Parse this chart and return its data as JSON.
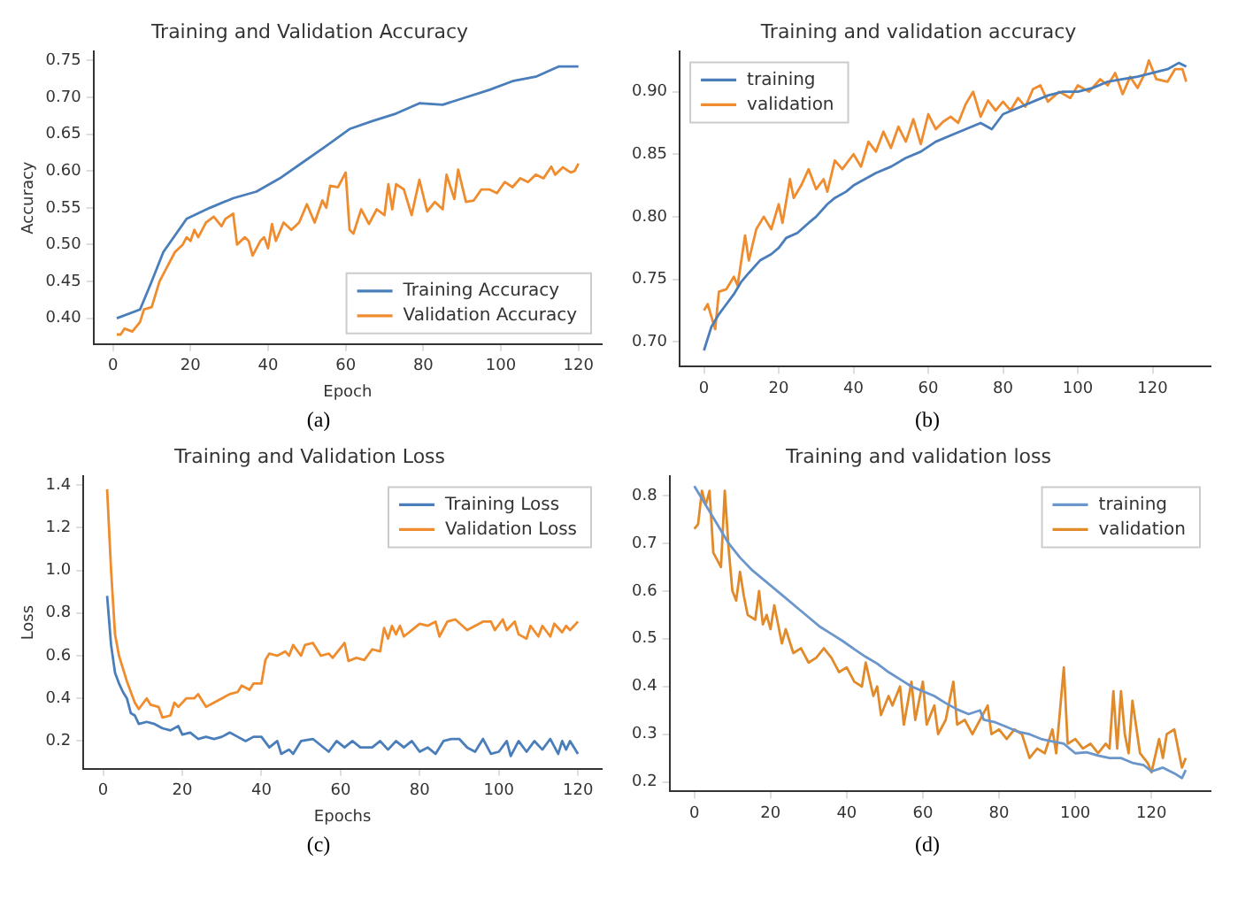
{
  "chart_data": [
    {
      "type": "line",
      "title": "Training and Validation Accuracy",
      "xlabel": "Epoch",
      "ylabel": "Accuracy",
      "annotations": [
        "(a)"
      ],
      "xlim": [
        -5,
        126
      ],
      "xticks": [
        0,
        20,
        40,
        60,
        80,
        100,
        120
      ],
      "ylim": [
        0.365,
        0.762
      ],
      "yticks": [
        {
          "value": 0.4,
          "label": "0.40"
        },
        {
          "value": 0.45,
          "label": "0.45"
        },
        {
          "value": 0.5,
          "label": "0.50"
        },
        {
          "value": 0.55,
          "label": "0.55"
        },
        {
          "value": 0.6,
          "label": "0.60"
        },
        {
          "value": 0.65,
          "label": "0.65"
        },
        {
          "value": 0.7,
          "label": "0.70"
        },
        {
          "value": 0.75,
          "label": "0.75"
        }
      ],
      "legend": "bottom right",
      "grid": false,
      "marker": "none",
      "line_style": "solid",
      "series": [
        {
          "name": "Training Accuracy",
          "color": "#4a7ebb",
          "x": [
            1,
            7,
            10,
            13,
            19,
            25,
            31,
            37,
            43,
            49,
            55,
            61,
            67,
            73,
            79,
            85,
            91,
            97,
            103,
            109,
            115,
            120
          ],
          "values": [
            0.4,
            0.412,
            0.45,
            0.49,
            0.535,
            0.55,
            0.563,
            0.572,
            0.59,
            0.612,
            0.634,
            0.657,
            0.668,
            0.678,
            0.692,
            0.69,
            0.7,
            0.71,
            0.722,
            0.728,
            0.742,
            0.742
          ]
        },
        {
          "name": "Validation Accuracy",
          "color": "#ef8c2e",
          "x": [
            1,
            2,
            3,
            5,
            7,
            8,
            10,
            12,
            14,
            16,
            18,
            19,
            20,
            21,
            22,
            24,
            26,
            28,
            29,
            31,
            32,
            34,
            35,
            36,
            38,
            39,
            40,
            41,
            42,
            44,
            46,
            48,
            50,
            52,
            54,
            55,
            56,
            58,
            60,
            61,
            62,
            64,
            66,
            68,
            70,
            71,
            72,
            73,
            75,
            77,
            79,
            81,
            83,
            85,
            86,
            88,
            89,
            91,
            93,
            95,
            97,
            99,
            101,
            103,
            105,
            107,
            109,
            111,
            113,
            114,
            116,
            118,
            119,
            120
          ],
          "values": [
            0.378,
            0.378,
            0.386,
            0.382,
            0.395,
            0.412,
            0.415,
            0.45,
            0.47,
            0.49,
            0.5,
            0.51,
            0.505,
            0.52,
            0.51,
            0.53,
            0.538,
            0.525,
            0.535,
            0.542,
            0.5,
            0.51,
            0.505,
            0.485,
            0.505,
            0.51,
            0.495,
            0.528,
            0.505,
            0.53,
            0.52,
            0.53,
            0.555,
            0.53,
            0.56,
            0.55,
            0.58,
            0.578,
            0.598,
            0.52,
            0.515,
            0.548,
            0.528,
            0.548,
            0.54,
            0.582,
            0.548,
            0.582,
            0.575,
            0.54,
            0.588,
            0.545,
            0.558,
            0.548,
            0.595,
            0.562,
            0.602,
            0.558,
            0.56,
            0.575,
            0.575,
            0.57,
            0.585,
            0.578,
            0.59,
            0.585,
            0.595,
            0.59,
            0.606,
            0.595,
            0.605,
            0.598,
            0.6,
            0.61
          ]
        }
      ]
    },
    {
      "type": "line",
      "title": "Training and validation accuracy",
      "annotations": [
        "(b)"
      ],
      "xlim": [
        -6.5,
        135.5
      ],
      "xticks": [
        0,
        20,
        40,
        60,
        80,
        100,
        120
      ],
      "ylim": [
        0.68,
        0.932
      ],
      "yticks": [
        {
          "value": 0.7,
          "label": "0.70"
        },
        0.75,
        {
          "value": 0.8,
          "label": "0.80"
        },
        0.85,
        {
          "value": 0.9,
          "label": "0.90"
        }
      ],
      "legend": "top left",
      "grid": false,
      "marker": "none",
      "line_style": "solid",
      "series": [
        {
          "name": "training",
          "color": "#4a7ebb",
          "x": [
            0,
            2,
            4,
            6,
            8,
            10,
            12,
            15,
            18,
            20,
            22,
            25,
            28,
            30,
            33,
            35,
            38,
            40,
            43,
            46,
            50,
            54,
            58,
            62,
            66,
            70,
            74,
            77,
            80,
            84,
            88,
            92,
            96,
            100,
            104,
            108,
            112,
            116,
            120,
            124,
            127,
            129
          ],
          "values": [
            0.693,
            0.712,
            0.722,
            0.73,
            0.738,
            0.748,
            0.755,
            0.765,
            0.77,
            0.775,
            0.783,
            0.787,
            0.795,
            0.8,
            0.81,
            0.815,
            0.82,
            0.825,
            0.83,
            0.835,
            0.84,
            0.847,
            0.852,
            0.86,
            0.865,
            0.87,
            0.875,
            0.87,
            0.882,
            0.887,
            0.892,
            0.897,
            0.9,
            0.9,
            0.903,
            0.908,
            0.91,
            0.912,
            0.915,
            0.918,
            0.923,
            0.92
          ]
        },
        {
          "name": "validation",
          "color": "#ef8c2e",
          "x": [
            0,
            1,
            2,
            3,
            4,
            6,
            8,
            9,
            11,
            12,
            14,
            16,
            18,
            20,
            21,
            23,
            24,
            26,
            28,
            30,
            32,
            33,
            35,
            37,
            40,
            42,
            44,
            46,
            48,
            50,
            52,
            54,
            56,
            58,
            60,
            62,
            64,
            66,
            68,
            70,
            72,
            74,
            76,
            78,
            80,
            82,
            84,
            86,
            88,
            90,
            92,
            95,
            98,
            100,
            103,
            106,
            108,
            110,
            112,
            114,
            116,
            118,
            119,
            121,
            124,
            126,
            128,
            129
          ],
          "values": [
            0.725,
            0.73,
            0.72,
            0.71,
            0.74,
            0.742,
            0.752,
            0.745,
            0.785,
            0.765,
            0.79,
            0.8,
            0.79,
            0.81,
            0.795,
            0.83,
            0.815,
            0.825,
            0.838,
            0.822,
            0.83,
            0.82,
            0.845,
            0.838,
            0.85,
            0.84,
            0.86,
            0.852,
            0.868,
            0.855,
            0.872,
            0.86,
            0.878,
            0.858,
            0.882,
            0.87,
            0.876,
            0.88,
            0.875,
            0.89,
            0.9,
            0.88,
            0.893,
            0.885,
            0.892,
            0.885,
            0.895,
            0.888,
            0.902,
            0.905,
            0.892,
            0.9,
            0.895,
            0.905,
            0.9,
            0.91,
            0.905,
            0.915,
            0.898,
            0.912,
            0.903,
            0.915,
            0.925,
            0.91,
            0.908,
            0.918,
            0.918,
            0.908
          ]
        }
      ]
    },
    {
      "type": "line",
      "title": "Training and Validation Loss",
      "xlabel": "Epochs",
      "ylabel": "Loss",
      "annotations": [
        "(c)"
      ],
      "xlim": [
        -5,
        126
      ],
      "xticks": [
        0,
        20,
        40,
        60,
        80,
        100,
        120
      ],
      "ylim": [
        0.07,
        1.44
      ],
      "yticks": [
        0.2,
        0.4,
        0.6,
        0.8,
        {
          "value": 1,
          "label": "1.0"
        },
        1.2,
        1.4
      ],
      "legend": "top right",
      "grid": false,
      "marker": "none",
      "line_style": "solid",
      "series": [
        {
          "name": "Training Loss",
          "color": "#4a7ebb",
          "x": [
            1,
            2,
            3,
            4,
            5,
            6,
            7,
            8,
            9,
            11,
            13,
            15,
            17,
            19,
            20,
            22,
            24,
            26,
            28,
            30,
            32,
            34,
            36,
            38,
            40,
            42,
            44,
            45,
            47,
            48,
            50,
            53,
            55,
            57,
            59,
            61,
            63,
            65,
            68,
            70,
            72,
            74,
            76,
            78,
            80,
            82,
            84,
            86,
            88,
            90,
            92,
            94,
            96,
            98,
            100,
            102,
            103,
            105,
            107,
            109,
            111,
            113,
            115,
            116,
            117,
            118,
            120
          ],
          "values": [
            0.88,
            0.65,
            0.52,
            0.47,
            0.43,
            0.4,
            0.33,
            0.32,
            0.28,
            0.29,
            0.28,
            0.26,
            0.25,
            0.27,
            0.23,
            0.24,
            0.21,
            0.22,
            0.21,
            0.22,
            0.24,
            0.22,
            0.2,
            0.22,
            0.22,
            0.17,
            0.2,
            0.14,
            0.16,
            0.14,
            0.2,
            0.21,
            0.18,
            0.15,
            0.2,
            0.17,
            0.2,
            0.17,
            0.17,
            0.2,
            0.16,
            0.2,
            0.17,
            0.2,
            0.15,
            0.17,
            0.14,
            0.2,
            0.21,
            0.21,
            0.17,
            0.15,
            0.21,
            0.14,
            0.15,
            0.2,
            0.13,
            0.2,
            0.15,
            0.2,
            0.16,
            0.21,
            0.14,
            0.2,
            0.16,
            0.2,
            0.14
          ]
        },
        {
          "name": "Validation Loss",
          "color": "#ef8c2e",
          "x": [
            1,
            2,
            3,
            4,
            6,
            8,
            9,
            11,
            12,
            14,
            15,
            17,
            18,
            19,
            21,
            23,
            24,
            26,
            28,
            30,
            32,
            34,
            35,
            37,
            38,
            40,
            41,
            42,
            44,
            46,
            47,
            48,
            50,
            51,
            53,
            55,
            57,
            58,
            61,
            62,
            64,
            66,
            68,
            70,
            71,
            72,
            73,
            74,
            75,
            76,
            78,
            80,
            82,
            84,
            85,
            87,
            89,
            92,
            94,
            96,
            98,
            99,
            101,
            102,
            104,
            105,
            107,
            108,
            110,
            111,
            113,
            114,
            116,
            117,
            118,
            120
          ],
          "values": [
            1.38,
            1.0,
            0.7,
            0.6,
            0.48,
            0.38,
            0.35,
            0.4,
            0.37,
            0.36,
            0.31,
            0.32,
            0.38,
            0.36,
            0.4,
            0.4,
            0.42,
            0.36,
            0.38,
            0.4,
            0.42,
            0.43,
            0.46,
            0.44,
            0.47,
            0.47,
            0.58,
            0.61,
            0.6,
            0.62,
            0.6,
            0.65,
            0.6,
            0.65,
            0.66,
            0.6,
            0.61,
            0.59,
            0.66,
            0.575,
            0.59,
            0.58,
            0.63,
            0.62,
            0.73,
            0.68,
            0.74,
            0.7,
            0.74,
            0.69,
            0.72,
            0.75,
            0.74,
            0.76,
            0.69,
            0.76,
            0.77,
            0.72,
            0.74,
            0.76,
            0.76,
            0.72,
            0.77,
            0.72,
            0.76,
            0.7,
            0.68,
            0.74,
            0.69,
            0.74,
            0.69,
            0.75,
            0.71,
            0.74,
            0.72,
            0.76
          ]
        }
      ]
    },
    {
      "type": "line",
      "title": "Training and validation loss",
      "annotations": [
        "(d)"
      ],
      "xlim": [
        -6.5,
        135.5
      ],
      "xticks": [
        0,
        20,
        40,
        60,
        80,
        100,
        120
      ],
      "ylim": [
        0.18,
        0.84
      ],
      "yticks": [
        0.2,
        0.3,
        0.4,
        0.5,
        0.6,
        0.7,
        0.8
      ],
      "legend": "top right",
      "grid": false,
      "marker": "none",
      "line_style": "solid",
      "series": [
        {
          "name": "training",
          "color": "#6b96cc",
          "x": [
            0,
            3,
            6,
            9,
            12,
            15,
            18,
            21,
            24,
            27,
            30,
            33,
            36,
            39,
            42,
            45,
            48,
            51,
            54,
            57,
            60,
            63,
            66,
            69,
            72,
            75,
            76,
            79,
            82,
            85,
            88,
            91,
            94,
            97,
            100,
            103,
            106,
            109,
            112,
            115,
            118,
            120,
            123,
            126,
            128,
            129
          ],
          "values": [
            0.82,
            0.78,
            0.74,
            0.7,
            0.67,
            0.645,
            0.625,
            0.605,
            0.585,
            0.565,
            0.545,
            0.525,
            0.51,
            0.495,
            0.478,
            0.462,
            0.448,
            0.43,
            0.415,
            0.4,
            0.39,
            0.38,
            0.365,
            0.352,
            0.342,
            0.35,
            0.33,
            0.325,
            0.315,
            0.305,
            0.3,
            0.29,
            0.285,
            0.28,
            0.26,
            0.262,
            0.255,
            0.25,
            0.25,
            0.24,
            0.235,
            0.222,
            0.23,
            0.218,
            0.208,
            0.225
          ]
        },
        {
          "name": "validation",
          "color": "#e08a2a",
          "x": [
            0,
            1,
            2,
            3,
            4,
            5,
            7,
            8,
            9,
            10,
            11,
            12,
            13,
            14,
            16,
            17,
            18,
            19,
            20,
            21,
            23,
            24,
            26,
            28,
            30,
            32,
            34,
            36,
            38,
            40,
            42,
            44,
            45,
            47,
            48,
            49,
            51,
            52,
            54,
            55,
            57,
            58,
            60,
            61,
            63,
            64,
            66,
            68,
            69,
            71,
            73,
            75,
            77,
            78,
            80,
            82,
            84,
            86,
            88,
            90,
            92,
            94,
            95,
            97,
            98,
            100,
            102,
            104,
            106,
            108,
            109,
            110,
            111,
            112,
            113,
            114,
            115,
            117,
            119,
            120,
            122,
            123,
            124,
            126,
            127,
            128,
            129
          ],
          "values": [
            0.73,
            0.74,
            0.81,
            0.78,
            0.81,
            0.68,
            0.65,
            0.81,
            0.69,
            0.6,
            0.58,
            0.64,
            0.59,
            0.55,
            0.54,
            0.6,
            0.53,
            0.55,
            0.52,
            0.57,
            0.49,
            0.52,
            0.47,
            0.48,
            0.45,
            0.46,
            0.48,
            0.46,
            0.43,
            0.44,
            0.41,
            0.4,
            0.45,
            0.38,
            0.4,
            0.34,
            0.38,
            0.36,
            0.4,
            0.32,
            0.41,
            0.33,
            0.41,
            0.32,
            0.36,
            0.3,
            0.33,
            0.41,
            0.32,
            0.33,
            0.3,
            0.33,
            0.36,
            0.3,
            0.31,
            0.29,
            0.31,
            0.3,
            0.25,
            0.27,
            0.26,
            0.31,
            0.26,
            0.44,
            0.28,
            0.29,
            0.27,
            0.28,
            0.26,
            0.28,
            0.27,
            0.39,
            0.27,
            0.39,
            0.3,
            0.26,
            0.37,
            0.26,
            0.24,
            0.22,
            0.29,
            0.25,
            0.3,
            0.31,
            0.27,
            0.23,
            0.25
          ]
        }
      ]
    }
  ]
}
